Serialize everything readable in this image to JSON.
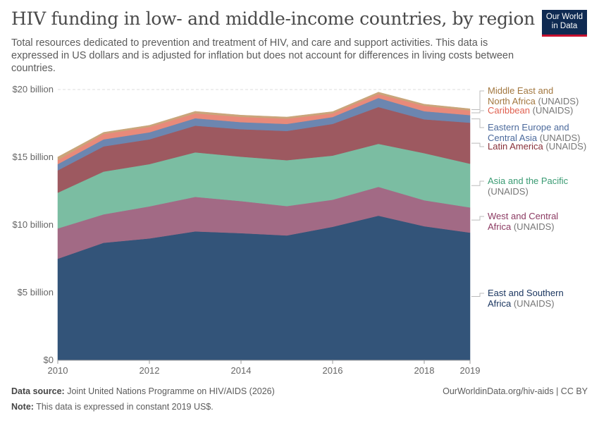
{
  "header": {
    "title": "HIV funding in low- and middle-income countries, by region",
    "subtitle": "Total resources dedicated to prevention and treatment of HIV, and care and support activities. This data is expressed in US dollars and is adjusted for inflation but does not account for differences in living costs between countries.",
    "logo": "Our World in Data"
  },
  "footer": {
    "source_label": "Data source:",
    "source": "Joint United Nations Programme on HIV/AIDS (2026)",
    "url": "OurWorldinData.org/hiv-aids | CC BY",
    "note_label": "Note:",
    "note": "This data is expressed in constant 2019 US$."
  },
  "chart_data": {
    "type": "area",
    "stacked": true,
    "x": [
      2010,
      2011,
      2012,
      2013,
      2014,
      2015,
      2016,
      2017,
      2018,
      2019
    ],
    "x_ticks": [
      "2010",
      "2012",
      "2014",
      "2016",
      "2018",
      "2019"
    ],
    "y_ticks": [
      "$0",
      "$5 billion",
      "$10 billion",
      "$15 billion",
      "$20 billion"
    ],
    "ylim": [
      0,
      20
    ],
    "unit": "billion US$",
    "grid": "horizontal dashed",
    "legend": "right, inline labels",
    "series": [
      {
        "name": "East and Southern",
        "name2": "Africa",
        "suffix": "(UNAIDS)",
        "color": "#335479",
        "label_color": "#1b3660",
        "values": [
          7.5,
          8.68,
          9.0,
          9.52,
          9.39,
          9.22,
          9.86,
          10.68,
          9.9,
          9.43
        ]
      },
      {
        "name": "West and Central",
        "name2": "Africa",
        "suffix": "(UNAIDS)",
        "color": "#a26a85",
        "label_color": "#8c3a62",
        "values": [
          2.24,
          2.1,
          2.37,
          2.55,
          2.37,
          2.17,
          2.0,
          2.13,
          1.92,
          1.86
        ]
      },
      {
        "name": "Asia and the Pacific",
        "name2": "",
        "suffix": "(UNAIDS)",
        "color": "#7bbda2",
        "label_color": "#3a9b73",
        "values": [
          2.64,
          3.16,
          3.12,
          3.29,
          3.28,
          3.39,
          3.26,
          3.18,
          3.48,
          3.23
        ]
      },
      {
        "name": "Latin America",
        "name2": "",
        "suffix": "(UNAIDS)",
        "color": "#9d5960",
        "label_color": "#883039",
        "values": [
          1.65,
          1.86,
          1.83,
          1.97,
          2.03,
          2.16,
          2.34,
          2.72,
          2.5,
          3.03
        ]
      },
      {
        "name": "Eastern Europe and",
        "name2": "Central Asia",
        "suffix": "(UNAIDS)",
        "color": "#6c86b0",
        "label_color": "#4c6a9c",
        "values": [
          0.46,
          0.52,
          0.52,
          0.55,
          0.52,
          0.52,
          0.51,
          0.67,
          0.6,
          0.56
        ]
      },
      {
        "name": "Caribbean",
        "name2": "",
        "suffix": "(UNAIDS)",
        "color": "#e88a7a",
        "label_color": "#e0604f",
        "values": [
          0.3,
          0.4,
          0.4,
          0.36,
          0.39,
          0.39,
          0.27,
          0.29,
          0.4,
          0.34
        ]
      },
      {
        "name": "Middle East and",
        "name2": "North Africa",
        "suffix": "(UNAIDS)",
        "color": "#c9a57a",
        "label_color": "#a2773f",
        "values": [
          0.23,
          0.12,
          0.12,
          0.15,
          0.13,
          0.12,
          0.13,
          0.14,
          0.12,
          0.13
        ]
      }
    ]
  }
}
